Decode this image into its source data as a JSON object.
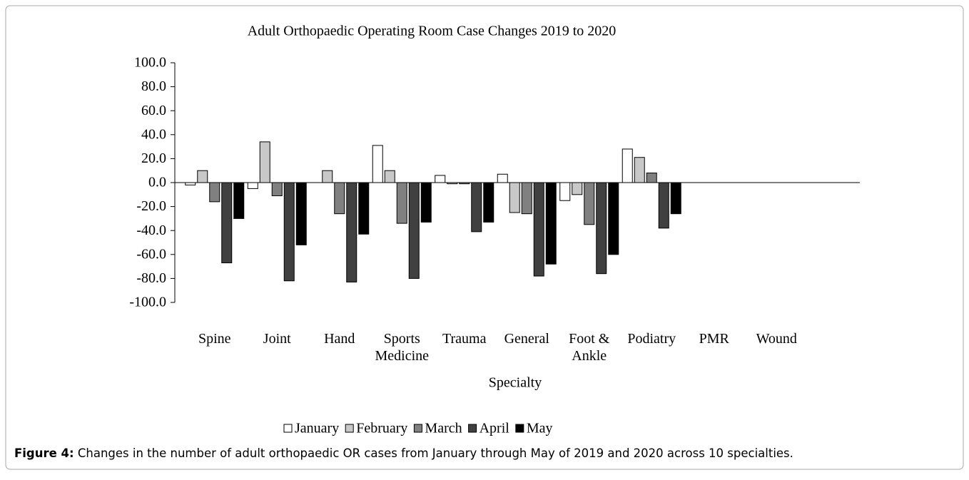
{
  "chart_data": {
    "type": "bar",
    "title": "Adult Orthopaedic Operating Room Case Changes 2019 to 2020",
    "x_label": "Specialty",
    "categories": [
      "Spine",
      "Joint",
      "Hand",
      "Sports Medicine",
      "Trauma",
      "General",
      "Foot & Ankle",
      "Podiatry",
      "PMR",
      "Wound"
    ],
    "series": [
      {
        "name": "January",
        "color": "#ffffff",
        "values": [
          -2,
          -5,
          null,
          31,
          6,
          7,
          -15,
          28,
          null,
          null
        ]
      },
      {
        "name": "February",
        "color": "#c8c8c8",
        "values": [
          10,
          34,
          10,
          10,
          -1,
          -25,
          -10,
          21,
          null,
          null
        ]
      },
      {
        "name": "March",
        "color": "#808080",
        "values": [
          -16,
          -11,
          -26,
          -34,
          -1,
          -26,
          -35,
          8,
          null,
          null
        ]
      },
      {
        "name": "April",
        "color": "#404040",
        "values": [
          -67,
          -82,
          -83,
          -80,
          -41,
          -78,
          -76,
          -38,
          null,
          null
        ]
      },
      {
        "name": "May",
        "color": "#000000",
        "values": [
          -30,
          -52,
          -43,
          -33,
          -33,
          -68,
          -60,
          -26,
          null,
          null
        ]
      }
    ],
    "ylim": [
      -100,
      100
    ],
    "yticks": [
      {
        "value": 100,
        "label": "100.0"
      },
      {
        "value": 80,
        "label": "80.0"
      },
      {
        "value": 60,
        "label": "60.0"
      },
      {
        "value": 40,
        "label": "40.0"
      },
      {
        "value": 20,
        "label": "20.0"
      },
      {
        "value": 0,
        "label": "0.0"
      },
      {
        "value": -20,
        "label": "-20.0"
      },
      {
        "value": -40,
        "label": "-40.0"
      },
      {
        "value": -60,
        "label": "-60.0"
      },
      {
        "value": -80,
        "label": "-80.0"
      },
      {
        "value": -100,
        "label": "-100.0"
      }
    ],
    "legend": "bottom"
  },
  "caption": {
    "label": "Figure 4:",
    "text": " Changes in the number of adult orthopaedic OR cases from January through May of 2019 and 2020 across 10 specialties."
  }
}
